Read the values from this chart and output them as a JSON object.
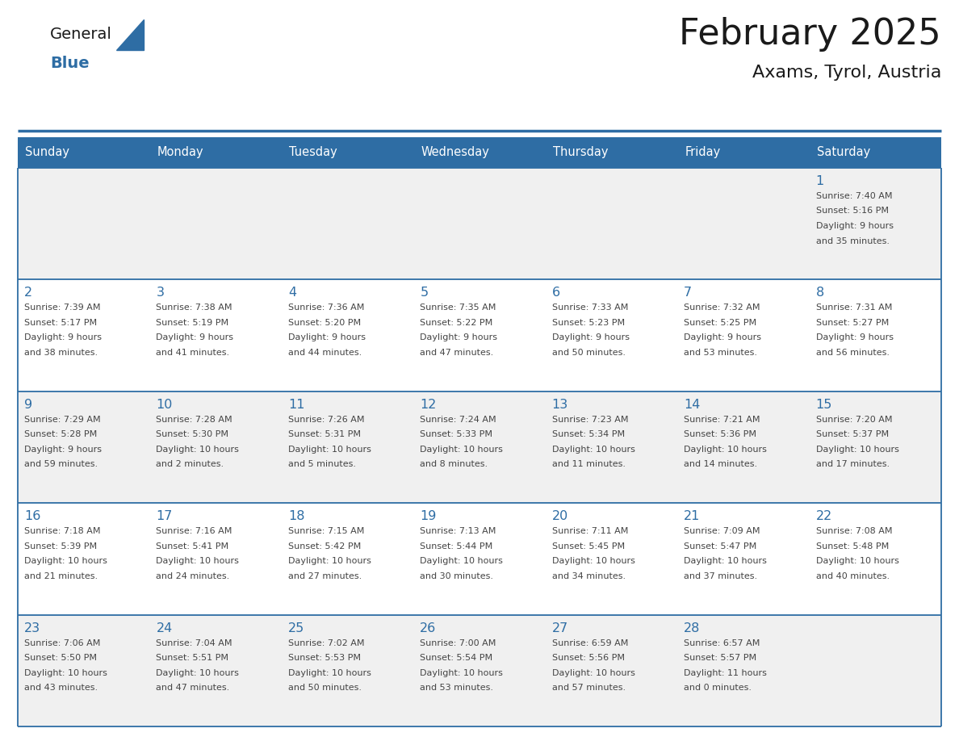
{
  "title": "February 2025",
  "subtitle": "Axams, Tyrol, Austria",
  "header_bg": "#2E6DA4",
  "header_text": "#FFFFFF",
  "day_names": [
    "Sunday",
    "Monday",
    "Tuesday",
    "Wednesday",
    "Thursday",
    "Friday",
    "Saturday"
  ],
  "cell_bg_even": "#F0F0F0",
  "cell_bg_odd": "#FFFFFF",
  "border_color": "#2E6DA4",
  "text_color": "#444444",
  "day_num_color": "#2E6DA4",
  "logo_general_color": "#1a1a1a",
  "logo_blue_color": "#2E6DA4",
  "calendar": [
    [
      null,
      null,
      null,
      null,
      null,
      null,
      {
        "day": 1,
        "sunrise": "7:40 AM",
        "sunset": "5:16 PM",
        "daylight_line1": "9 hours",
        "daylight_line2": "and 35 minutes."
      }
    ],
    [
      {
        "day": 2,
        "sunrise": "7:39 AM",
        "sunset": "5:17 PM",
        "daylight_line1": "9 hours",
        "daylight_line2": "and 38 minutes."
      },
      {
        "day": 3,
        "sunrise": "7:38 AM",
        "sunset": "5:19 PM",
        "daylight_line1": "9 hours",
        "daylight_line2": "and 41 minutes."
      },
      {
        "day": 4,
        "sunrise": "7:36 AM",
        "sunset": "5:20 PM",
        "daylight_line1": "9 hours",
        "daylight_line2": "and 44 minutes."
      },
      {
        "day": 5,
        "sunrise": "7:35 AM",
        "sunset": "5:22 PM",
        "daylight_line1": "9 hours",
        "daylight_line2": "and 47 minutes."
      },
      {
        "day": 6,
        "sunrise": "7:33 AM",
        "sunset": "5:23 PM",
        "daylight_line1": "9 hours",
        "daylight_line2": "and 50 minutes."
      },
      {
        "day": 7,
        "sunrise": "7:32 AM",
        "sunset": "5:25 PM",
        "daylight_line1": "9 hours",
        "daylight_line2": "and 53 minutes."
      },
      {
        "day": 8,
        "sunrise": "7:31 AM",
        "sunset": "5:27 PM",
        "daylight_line1": "9 hours",
        "daylight_line2": "and 56 minutes."
      }
    ],
    [
      {
        "day": 9,
        "sunrise": "7:29 AM",
        "sunset": "5:28 PM",
        "daylight_line1": "9 hours",
        "daylight_line2": "and 59 minutes."
      },
      {
        "day": 10,
        "sunrise": "7:28 AM",
        "sunset": "5:30 PM",
        "daylight_line1": "10 hours",
        "daylight_line2": "and 2 minutes."
      },
      {
        "day": 11,
        "sunrise": "7:26 AM",
        "sunset": "5:31 PM",
        "daylight_line1": "10 hours",
        "daylight_line2": "and 5 minutes."
      },
      {
        "day": 12,
        "sunrise": "7:24 AM",
        "sunset": "5:33 PM",
        "daylight_line1": "10 hours",
        "daylight_line2": "and 8 minutes."
      },
      {
        "day": 13,
        "sunrise": "7:23 AM",
        "sunset": "5:34 PM",
        "daylight_line1": "10 hours",
        "daylight_line2": "and 11 minutes."
      },
      {
        "day": 14,
        "sunrise": "7:21 AM",
        "sunset": "5:36 PM",
        "daylight_line1": "10 hours",
        "daylight_line2": "and 14 minutes."
      },
      {
        "day": 15,
        "sunrise": "7:20 AM",
        "sunset": "5:37 PM",
        "daylight_line1": "10 hours",
        "daylight_line2": "and 17 minutes."
      }
    ],
    [
      {
        "day": 16,
        "sunrise": "7:18 AM",
        "sunset": "5:39 PM",
        "daylight_line1": "10 hours",
        "daylight_line2": "and 21 minutes."
      },
      {
        "day": 17,
        "sunrise": "7:16 AM",
        "sunset": "5:41 PM",
        "daylight_line1": "10 hours",
        "daylight_line2": "and 24 minutes."
      },
      {
        "day": 18,
        "sunrise": "7:15 AM",
        "sunset": "5:42 PM",
        "daylight_line1": "10 hours",
        "daylight_line2": "and 27 minutes."
      },
      {
        "day": 19,
        "sunrise": "7:13 AM",
        "sunset": "5:44 PM",
        "daylight_line1": "10 hours",
        "daylight_line2": "and 30 minutes."
      },
      {
        "day": 20,
        "sunrise": "7:11 AM",
        "sunset": "5:45 PM",
        "daylight_line1": "10 hours",
        "daylight_line2": "and 34 minutes."
      },
      {
        "day": 21,
        "sunrise": "7:09 AM",
        "sunset": "5:47 PM",
        "daylight_line1": "10 hours",
        "daylight_line2": "and 37 minutes."
      },
      {
        "day": 22,
        "sunrise": "7:08 AM",
        "sunset": "5:48 PM",
        "daylight_line1": "10 hours",
        "daylight_line2": "and 40 minutes."
      }
    ],
    [
      {
        "day": 23,
        "sunrise": "7:06 AM",
        "sunset": "5:50 PM",
        "daylight_line1": "10 hours",
        "daylight_line2": "and 43 minutes."
      },
      {
        "day": 24,
        "sunrise": "7:04 AM",
        "sunset": "5:51 PM",
        "daylight_line1": "10 hours",
        "daylight_line2": "and 47 minutes."
      },
      {
        "day": 25,
        "sunrise": "7:02 AM",
        "sunset": "5:53 PM",
        "daylight_line1": "10 hours",
        "daylight_line2": "and 50 minutes."
      },
      {
        "day": 26,
        "sunrise": "7:00 AM",
        "sunset": "5:54 PM",
        "daylight_line1": "10 hours",
        "daylight_line2": "and 53 minutes."
      },
      {
        "day": 27,
        "sunrise": "6:59 AM",
        "sunset": "5:56 PM",
        "daylight_line1": "10 hours",
        "daylight_line2": "and 57 minutes."
      },
      {
        "day": 28,
        "sunrise": "6:57 AM",
        "sunset": "5:57 PM",
        "daylight_line1": "11 hours",
        "daylight_line2": "and 0 minutes."
      },
      null
    ]
  ]
}
